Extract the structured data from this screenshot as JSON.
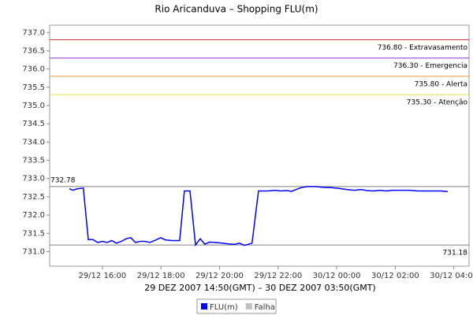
{
  "chart_data": {
    "type": "line",
    "title": "Rio Aricanduva – Shopping FLU(m)",
    "x_label": "29 DEZ 2007 14:50(GMT) – 30 DEZ 2007 03:50(GMT)",
    "x": [
      14.87,
      15.0,
      15.14,
      15.35,
      15.52,
      15.68,
      15.84,
      16.0,
      16.16,
      16.32,
      16.48,
      16.65,
      16.81,
      16.97,
      17.13,
      17.29,
      17.45,
      17.62,
      17.78,
      17.99,
      18.15,
      18.37,
      18.64,
      18.8,
      18.99,
      19.18,
      19.34,
      19.5,
      19.66,
      19.88,
      20.09,
      20.31,
      20.52,
      20.68,
      20.85,
      21.11,
      21.33,
      21.65,
      21.92,
      22.08,
      22.3,
      22.46,
      22.62,
      22.78,
      23.0,
      23.27,
      23.54,
      23.81,
      24.08,
      24.34,
      24.61,
      24.83,
      25.04,
      25.26,
      25.48,
      25.69,
      25.91,
      26.23,
      26.5,
      26.77,
      27.04,
      27.31,
      27.57,
      27.79
    ],
    "series": [
      {
        "name": "FLU(m)",
        "color": "#0000ff",
        "values": [
          732.72,
          732.68,
          732.72,
          732.74,
          731.33,
          731.33,
          731.25,
          731.28,
          731.25,
          731.3,
          731.23,
          731.28,
          731.35,
          731.38,
          731.25,
          731.28,
          731.28,
          731.25,
          731.3,
          731.38,
          731.32,
          731.3,
          731.3,
          732.66,
          732.66,
          731.18,
          731.35,
          731.2,
          731.26,
          731.25,
          731.23,
          731.21,
          731.2,
          731.23,
          731.17,
          731.23,
          732.66,
          732.66,
          732.68,
          732.66,
          732.67,
          732.65,
          732.7,
          732.75,
          732.78,
          732.78,
          732.76,
          732.75,
          732.73,
          732.7,
          732.68,
          732.7,
          732.67,
          732.66,
          732.68,
          732.66,
          732.68,
          732.68,
          732.68,
          732.66,
          732.66,
          732.66,
          732.66,
          732.64
        ]
      }
    ],
    "extra_legend": [
      {
        "name": "Falha",
        "color": "#c0c0c0"
      }
    ],
    "thresholds": [
      {
        "value": 736.8,
        "label": "736.80 - Extravasamento",
        "color": "#cc3333",
        "label_side": "right"
      },
      {
        "value": 736.3,
        "label": "736.30 - Emergencia",
        "color": "#9933cc",
        "label_side": "right"
      },
      {
        "value": 735.8,
        "label": "735.80 - Alerta",
        "color": "#e89a30",
        "label_side": "right"
      },
      {
        "value": 735.3,
        "label": "735.30 - Atenção",
        "color": "#e8e050",
        "label_side": "right"
      },
      {
        "value": 732.78,
        "label": "732.78",
        "color": "#808080",
        "label_side": "left"
      },
      {
        "value": 731.18,
        "label": "731.18",
        "color": "#808080",
        "label_side": "right"
      }
    ],
    "xlim": [
      14.2,
      28.52
    ],
    "xticks": [
      {
        "value": 16,
        "label": "29/12 16:00"
      },
      {
        "value": 18,
        "label": "29/12 18:00"
      },
      {
        "value": 20,
        "label": "29/12 20:00"
      },
      {
        "value": 22,
        "label": "29/12 22:00"
      },
      {
        "value": 24,
        "label": "30/12 00:00"
      },
      {
        "value": 26,
        "label": "30/12 02:00"
      },
      {
        "value": 28,
        "label": "30/12 04:00"
      }
    ],
    "ylim": [
      730.6,
      737.2
    ],
    "yticks": [
      {
        "value": 731,
        "label": "731.0"
      },
      731.5,
      {
        "value": 732,
        "label": "732.0"
      },
      732.5,
      {
        "value": 733,
        "label": "733.0"
      },
      733.5,
      {
        "value": 734,
        "label": "734.0"
      },
      734.5,
      {
        "value": 735,
        "label": "735.0"
      },
      735.5,
      {
        "value": 736,
        "label": "736.0"
      },
      736.5,
      {
        "value": 737,
        "label": "737.0"
      }
    ],
    "grid": false
  }
}
